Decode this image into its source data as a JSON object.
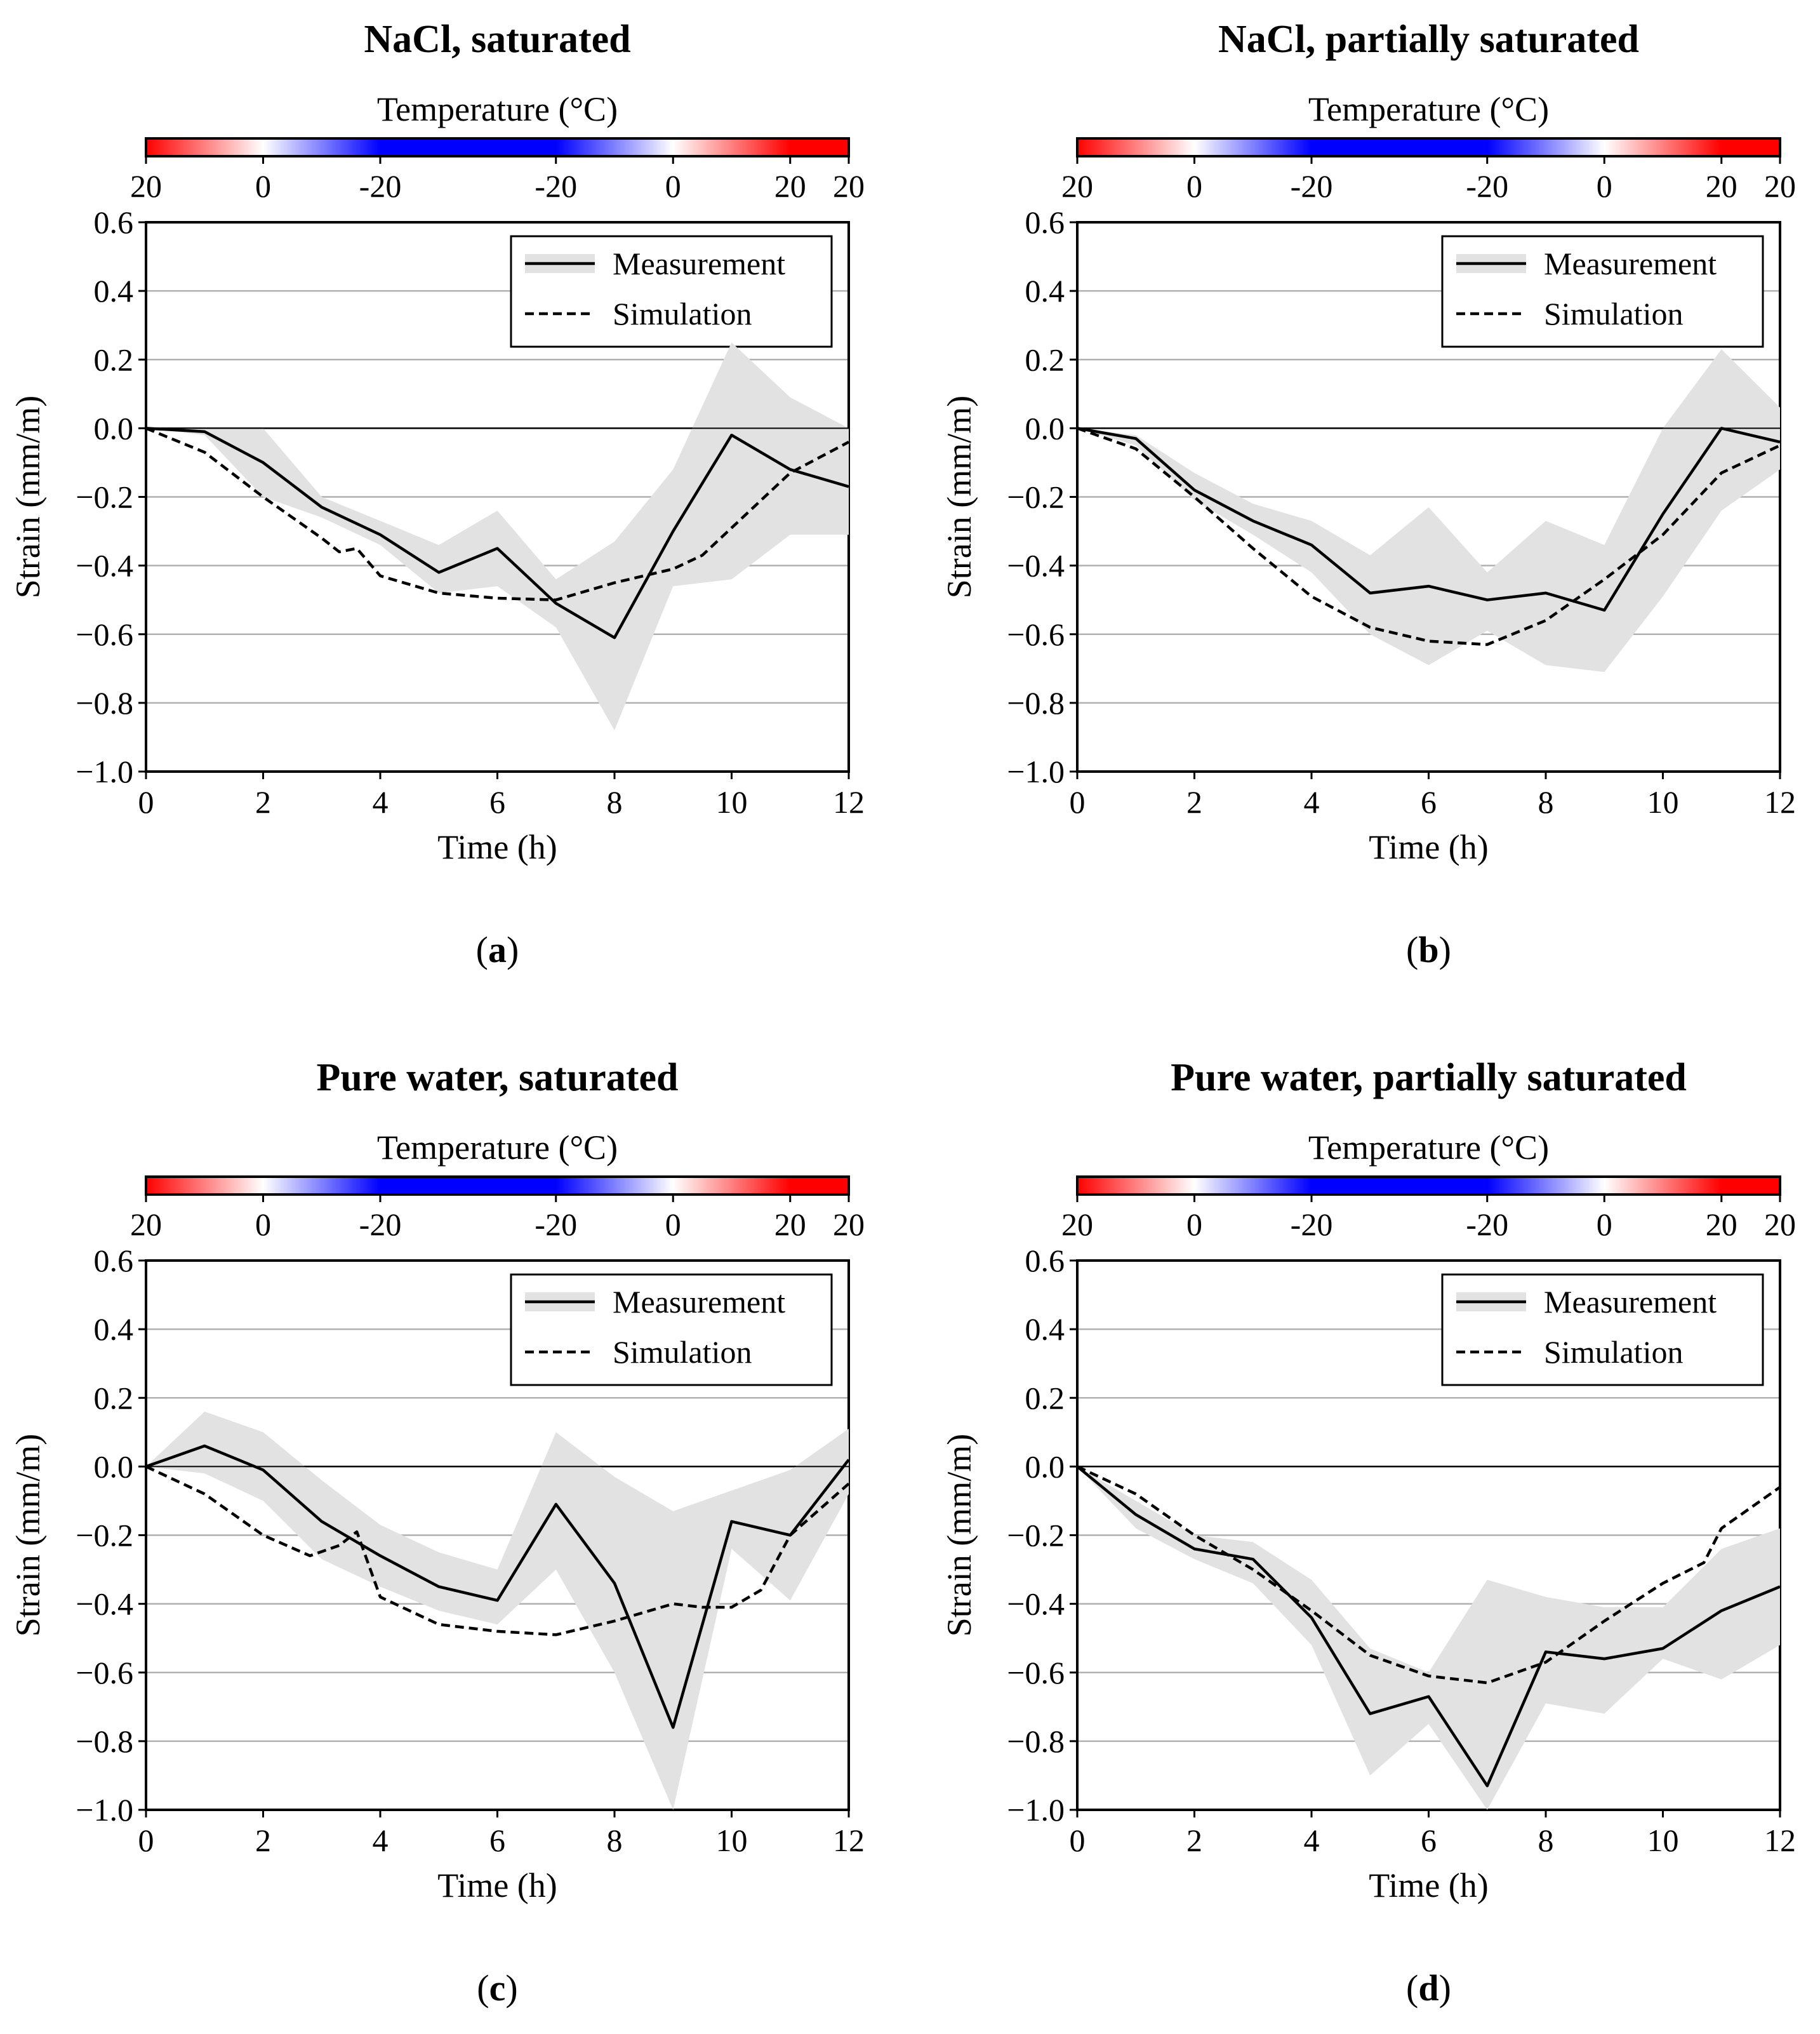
{
  "colors": {
    "band": "#e2e2e2",
    "grid": "#b0b0b0",
    "line": "#000000",
    "cmap_hot": "#ff0000",
    "cmap_neutral": "#ffffff",
    "cmap_cold": "#0000ff"
  },
  "chart_data": [
    {
      "type": "line",
      "id": "a",
      "title": "NaCl, saturated",
      "sublabel_open": "(",
      "sublabel_letter": "a",
      "sublabel_close": ")",
      "xlabel": "Time (h)",
      "ylabel": "Strain (mm/m)",
      "xlim": [
        0,
        12
      ],
      "ylim": [
        -1.0,
        0.6
      ],
      "xticks": [
        "0",
        "2",
        "4",
        "6",
        "8",
        "10",
        "12"
      ],
      "yticks": [
        "0.6",
        "0.4",
        "0.2",
        "0.0",
        "−0.2",
        "−0.4",
        "−0.6",
        "−0.8",
        "−1.0"
      ],
      "ytick_values": [
        0.6,
        0.4,
        0.2,
        0.0,
        -0.2,
        -0.4,
        -0.6,
        -0.8,
        -1.0
      ],
      "legend": {
        "measurement": "Measurement",
        "simulation": "Simulation",
        "placement": "top-right"
      },
      "colorbar": {
        "title": "Temperature (°C)",
        "ticks": [
          {
            "t": 0,
            "label": "20"
          },
          {
            "t": 2,
            "label": "0"
          },
          {
            "t": 4,
            "label": "-20"
          },
          {
            "t": 7,
            "label": "-20"
          },
          {
            "t": 9,
            "label": "0"
          },
          {
            "t": 11,
            "label": "20"
          },
          {
            "t": 12,
            "label": "20"
          }
        ],
        "temperature_profile": {
          "t": [
            0,
            2,
            4,
            7,
            9,
            11,
            12
          ],
          "temp": [
            20,
            0,
            -20,
            -20,
            0,
            20,
            20
          ]
        }
      },
      "series": [
        {
          "name": "Measurement",
          "x": [
            0,
            1,
            2,
            3,
            4,
            5,
            6,
            7,
            8,
            9,
            10,
            11,
            12
          ],
          "y": [
            0.0,
            -0.01,
            -0.1,
            -0.23,
            -0.31,
            -0.42,
            -0.35,
            -0.51,
            -0.61,
            -0.3,
            -0.02,
            -0.12,
            -0.17
          ]
        },
        {
          "name": "Simulation",
          "x": [
            0,
            1,
            2,
            3,
            3.3,
            3.6,
            4,
            5,
            6,
            7,
            8,
            9,
            9.5,
            10,
            11,
            12
          ],
          "y": [
            0.0,
            -0.07,
            -0.2,
            -0.32,
            -0.36,
            -0.35,
            -0.43,
            -0.48,
            -0.495,
            -0.5,
            -0.45,
            -0.41,
            -0.37,
            -0.29,
            -0.13,
            -0.04
          ]
        }
      ],
      "measurement_band": {
        "x": [
          0,
          1,
          2,
          3,
          4,
          5,
          6,
          7,
          8,
          9,
          10,
          11,
          12
        ],
        "upper": [
          0.0,
          0.0,
          0.0,
          -0.2,
          -0.27,
          -0.34,
          -0.24,
          -0.44,
          -0.33,
          -0.12,
          0.25,
          0.09,
          0.0
        ],
        "lower": [
          0.0,
          -0.02,
          -0.2,
          -0.26,
          -0.34,
          -0.48,
          -0.46,
          -0.58,
          -0.88,
          -0.46,
          -0.44,
          -0.31,
          -0.31
        ]
      }
    },
    {
      "type": "line",
      "id": "b",
      "title": "NaCl, partially saturated",
      "sublabel_open": "(",
      "sublabel_letter": "b",
      "sublabel_close": ")",
      "xlabel": "Time (h)",
      "ylabel": "Strain (mm/m)",
      "xlim": [
        0,
        12
      ],
      "ylim": [
        -1.0,
        0.6
      ],
      "xticks": [
        "0",
        "2",
        "4",
        "6",
        "8",
        "10",
        "12"
      ],
      "yticks": [
        "0.6",
        "0.4",
        "0.2",
        "0.0",
        "−0.2",
        "−0.4",
        "−0.6",
        "−0.8",
        "−1.0"
      ],
      "ytick_values": [
        0.6,
        0.4,
        0.2,
        0.0,
        -0.2,
        -0.4,
        -0.6,
        -0.8,
        -1.0
      ],
      "legend": {
        "measurement": "Measurement",
        "simulation": "Simulation",
        "placement": "top-right"
      },
      "colorbar": {
        "title": "Temperature (°C)",
        "ticks": [
          {
            "t": 0,
            "label": "20"
          },
          {
            "t": 2,
            "label": "0"
          },
          {
            "t": 4,
            "label": "-20"
          },
          {
            "t": 7,
            "label": "-20"
          },
          {
            "t": 9,
            "label": "0"
          },
          {
            "t": 11,
            "label": "20"
          },
          {
            "t": 12,
            "label": "20"
          }
        ],
        "temperature_profile": {
          "t": [
            0,
            2,
            4,
            7,
            9,
            11,
            12
          ],
          "temp": [
            20,
            0,
            -20,
            -20,
            0,
            20,
            20
          ]
        }
      },
      "series": [
        {
          "name": "Measurement",
          "x": [
            0,
            1,
            2,
            3,
            4,
            5,
            6,
            7,
            8,
            9,
            10,
            11,
            12
          ],
          "y": [
            0.0,
            -0.03,
            -0.18,
            -0.27,
            -0.34,
            -0.48,
            -0.46,
            -0.5,
            -0.48,
            -0.53,
            -0.25,
            0.0,
            -0.04
          ]
        },
        {
          "name": "Simulation",
          "x": [
            0,
            1,
            2,
            3,
            4,
            5,
            6,
            7,
            8,
            9,
            10,
            11,
            12
          ],
          "y": [
            0.0,
            -0.06,
            -0.2,
            -0.35,
            -0.49,
            -0.58,
            -0.62,
            -0.63,
            -0.56,
            -0.44,
            -0.31,
            -0.13,
            -0.05
          ]
        }
      ],
      "measurement_band": {
        "x": [
          0,
          1,
          2,
          3,
          4,
          5,
          6,
          7,
          8,
          9,
          10,
          11,
          12
        ],
        "upper": [
          0.0,
          -0.02,
          -0.13,
          -0.22,
          -0.27,
          -0.37,
          -0.23,
          -0.42,
          -0.27,
          -0.34,
          0.0,
          0.23,
          0.06
        ],
        "lower": [
          0.0,
          -0.05,
          -0.21,
          -0.31,
          -0.42,
          -0.6,
          -0.69,
          -0.59,
          -0.69,
          -0.71,
          -0.49,
          -0.24,
          -0.12
        ]
      }
    },
    {
      "type": "line",
      "id": "c",
      "title": "Pure water, saturated",
      "sublabel_open": "(",
      "sublabel_letter": "c",
      "sublabel_close": ")",
      "xlabel": "Time (h)",
      "ylabel": "Strain (mm/m)",
      "xlim": [
        0,
        12
      ],
      "ylim": [
        -1.0,
        0.6
      ],
      "xticks": [
        "0",
        "2",
        "4",
        "6",
        "8",
        "10",
        "12"
      ],
      "yticks": [
        "0.6",
        "0.4",
        "0.2",
        "0.0",
        "−0.2",
        "−0.4",
        "−0.6",
        "−0.8",
        "−1.0"
      ],
      "ytick_values": [
        0.6,
        0.4,
        0.2,
        0.0,
        -0.2,
        -0.4,
        -0.6,
        -0.8,
        -1.0
      ],
      "legend": {
        "measurement": "Measurement",
        "simulation": "Simulation",
        "placement": "top-right"
      },
      "colorbar": {
        "title": "Temperature (°C)",
        "ticks": [
          {
            "t": 0,
            "label": "20"
          },
          {
            "t": 2,
            "label": "0"
          },
          {
            "t": 4,
            "label": "-20"
          },
          {
            "t": 7,
            "label": "-20"
          },
          {
            "t": 9,
            "label": "0"
          },
          {
            "t": 11,
            "label": "20"
          },
          {
            "t": 12,
            "label": "20"
          }
        ],
        "temperature_profile": {
          "t": [
            0,
            2,
            4,
            7,
            9,
            11,
            12
          ],
          "temp": [
            20,
            0,
            -20,
            -20,
            0,
            20,
            20
          ]
        }
      },
      "series": [
        {
          "name": "Measurement",
          "x": [
            0,
            1,
            2,
            3,
            4,
            5,
            6,
            7,
            8,
            9,
            10,
            11,
            12
          ],
          "y": [
            0.0,
            0.06,
            -0.01,
            -0.16,
            -0.26,
            -0.35,
            -0.39,
            -0.11,
            -0.34,
            -0.76,
            -0.16,
            -0.2,
            0.02
          ]
        },
        {
          "name": "Simulation",
          "x": [
            0,
            1,
            2,
            2.8,
            3.3,
            3.6,
            4,
            5,
            6,
            7,
            8,
            9,
            9.5,
            10,
            10.5,
            11,
            12
          ],
          "y": [
            0.0,
            -0.08,
            -0.2,
            -0.26,
            -0.23,
            -0.19,
            -0.38,
            -0.46,
            -0.48,
            -0.49,
            -0.45,
            -0.4,
            -0.41,
            -0.41,
            -0.36,
            -0.2,
            -0.05
          ]
        }
      ],
      "measurement_band": {
        "x": [
          0,
          1,
          2,
          3,
          4,
          5,
          6,
          7,
          8,
          9,
          10,
          11,
          12
        ],
        "upper": [
          0.0,
          0.16,
          0.1,
          -0.04,
          -0.17,
          -0.25,
          -0.3,
          0.1,
          -0.03,
          -0.13,
          -0.07,
          -0.01,
          0.11
        ],
        "lower": [
          0.0,
          -0.02,
          -0.1,
          -0.27,
          -0.35,
          -0.42,
          -0.46,
          -0.3,
          -0.6,
          -1.0,
          -0.24,
          -0.39,
          -0.08
        ]
      }
    },
    {
      "type": "line",
      "id": "d",
      "title": "Pure water, partially saturated",
      "sublabel_open": "(",
      "sublabel_letter": "d",
      "sublabel_close": ")",
      "xlabel": "Time (h)",
      "ylabel": "Strain (mm/m)",
      "xlim": [
        0,
        12
      ],
      "ylim": [
        -1.0,
        0.6
      ],
      "xticks": [
        "0",
        "2",
        "4",
        "6",
        "8",
        "10",
        "12"
      ],
      "yticks": [
        "0.6",
        "0.4",
        "0.2",
        "0.0",
        "−0.2",
        "−0.4",
        "−0.6",
        "−0.8",
        "−1.0"
      ],
      "ytick_values": [
        0.6,
        0.4,
        0.2,
        0.0,
        -0.2,
        -0.4,
        -0.6,
        -0.8,
        -1.0
      ],
      "legend": {
        "measurement": "Measurement",
        "simulation": "Simulation",
        "placement": "top-right"
      },
      "colorbar": {
        "title": "Temperature (°C)",
        "ticks": [
          {
            "t": 0,
            "label": "20"
          },
          {
            "t": 2,
            "label": "0"
          },
          {
            "t": 4,
            "label": "-20"
          },
          {
            "t": 7,
            "label": "-20"
          },
          {
            "t": 9,
            "label": "0"
          },
          {
            "t": 11,
            "label": "20"
          },
          {
            "t": 12,
            "label": "20"
          }
        ],
        "temperature_profile": {
          "t": [
            0,
            2,
            4,
            7,
            9,
            11,
            12
          ],
          "temp": [
            20,
            0,
            -20,
            -20,
            0,
            20,
            20
          ]
        }
      },
      "series": [
        {
          "name": "Measurement",
          "x": [
            0,
            1,
            2,
            3,
            4,
            5,
            6,
            7,
            8,
            9,
            10,
            11,
            12
          ],
          "y": [
            0.0,
            -0.14,
            -0.24,
            -0.27,
            -0.44,
            -0.72,
            -0.67,
            -0.93,
            -0.54,
            -0.56,
            -0.53,
            -0.42,
            -0.35
          ]
        },
        {
          "name": "Simulation",
          "x": [
            0,
            1,
            2,
            3,
            4,
            5,
            6,
            7,
            8,
            9,
            10,
            10.7,
            11,
            12
          ],
          "y": [
            0.0,
            -0.08,
            -0.2,
            -0.3,
            -0.42,
            -0.55,
            -0.61,
            -0.63,
            -0.57,
            -0.45,
            -0.34,
            -0.28,
            -0.18,
            -0.06
          ]
        }
      ],
      "measurement_band": {
        "x": [
          0,
          1,
          2,
          3,
          4,
          5,
          6,
          7,
          8,
          9,
          10,
          11,
          12
        ],
        "upper": [
          0.0,
          -0.1,
          -0.2,
          -0.22,
          -0.33,
          -0.53,
          -0.6,
          -0.33,
          -0.38,
          -0.41,
          -0.41,
          -0.24,
          -0.18
        ],
        "lower": [
          0.0,
          -0.18,
          -0.27,
          -0.34,
          -0.52,
          -0.9,
          -0.75,
          -1.0,
          -0.69,
          -0.72,
          -0.56,
          -0.62,
          -0.52
        ]
      }
    }
  ]
}
